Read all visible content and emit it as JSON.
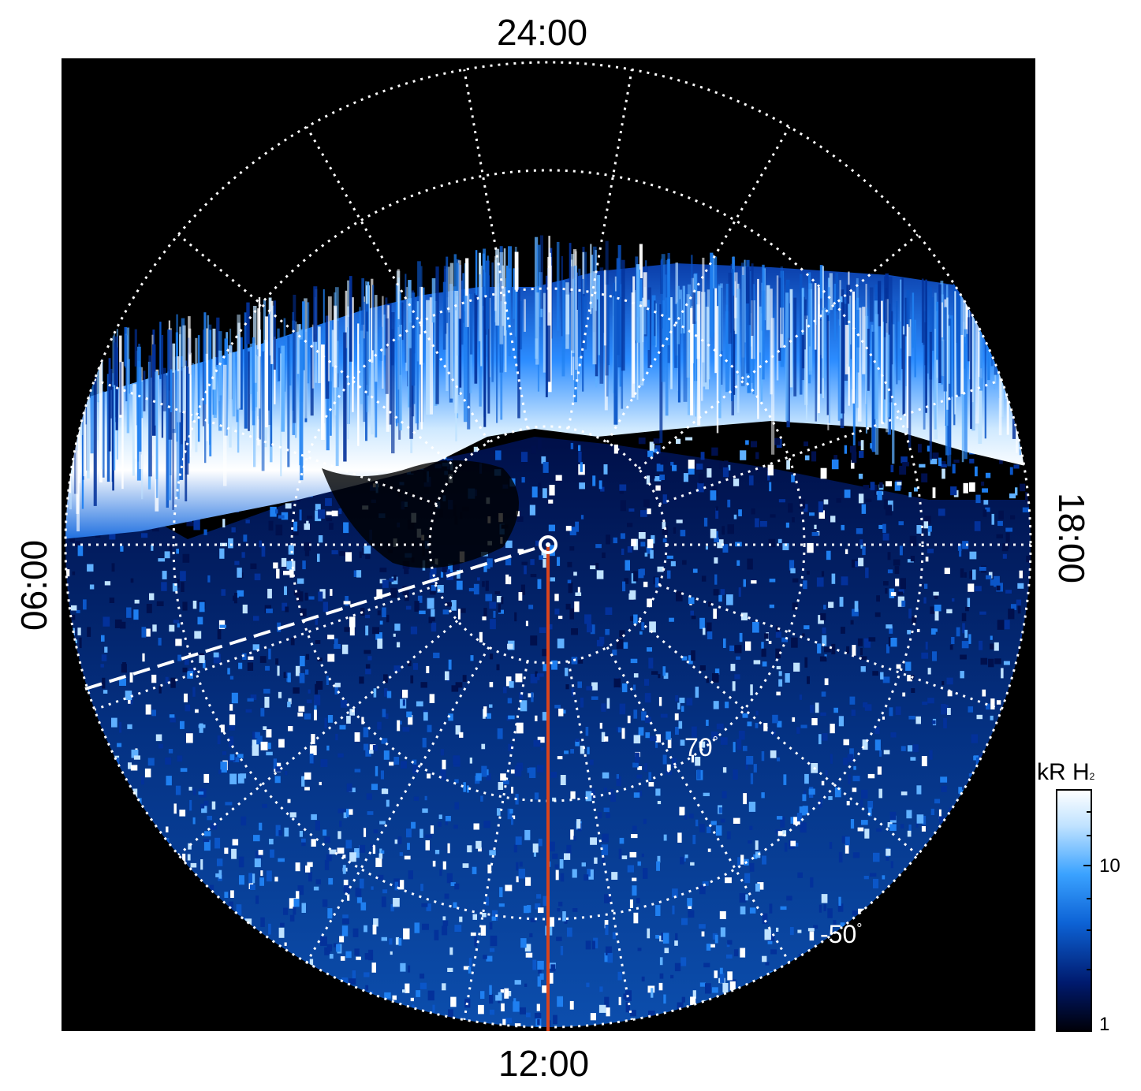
{
  "local_time_labels": {
    "top": "24:00",
    "bottom": "12:00",
    "left": "06:00",
    "right": "18:00"
  },
  "latitude_labels": [
    {
      "text": "70",
      "unit": "°"
    },
    {
      "text": "-50",
      "unit": "°"
    }
  ],
  "colorbar": {
    "title_main": "kR H",
    "title_sub": "2",
    "ticks": [
      "10",
      "1"
    ],
    "colors": [
      "#000008",
      "#001a6e",
      "#0d63d6",
      "#3aa2ff",
      "#bfe2ff",
      "#ffffff"
    ]
  },
  "colors": {
    "background": "#000000",
    "grid": "#ffffff",
    "meridian_line": "#d9441c",
    "aurora_dim": "#0a3da8",
    "aurora_bright": "#ffffff"
  }
}
